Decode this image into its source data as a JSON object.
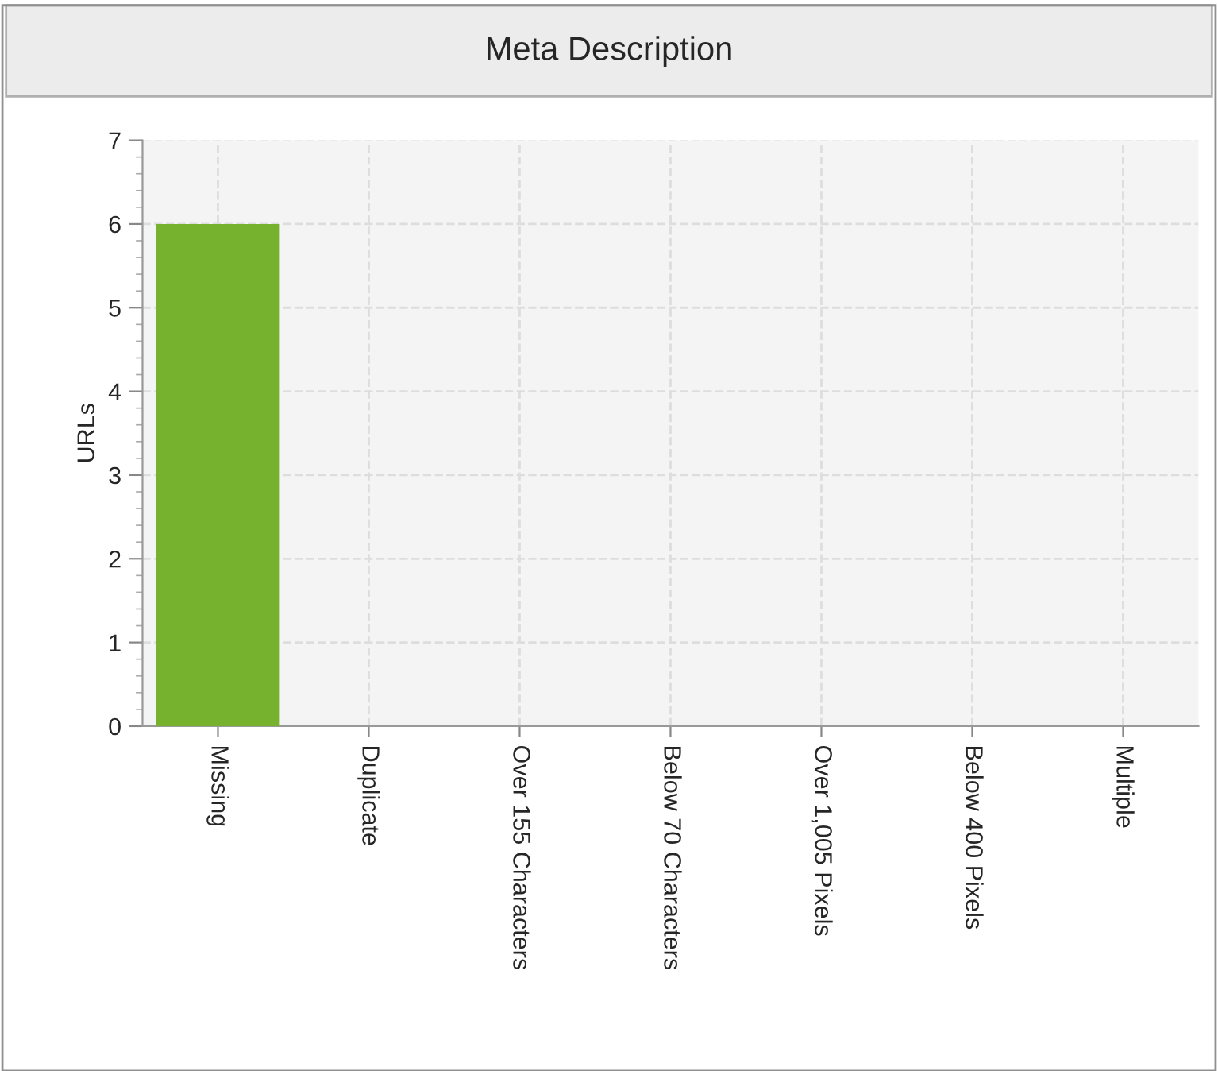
{
  "chart_data": {
    "type": "bar",
    "title": "Meta Description",
    "ylabel": "URLs",
    "categories": [
      "Missing",
      "Duplicate",
      "Over 155 Characters",
      "Below 70 Characters",
      "Over 1,005 Pixels",
      "Below 400 Pixels",
      "Multiple"
    ],
    "values": [
      6,
      0,
      0,
      0,
      0,
      0,
      0
    ],
    "color": "#76b22e",
    "ylim": [
      0,
      7
    ],
    "yticks": [
      0,
      1,
      2,
      3,
      4,
      5,
      6,
      7
    ],
    "grid": true
  }
}
